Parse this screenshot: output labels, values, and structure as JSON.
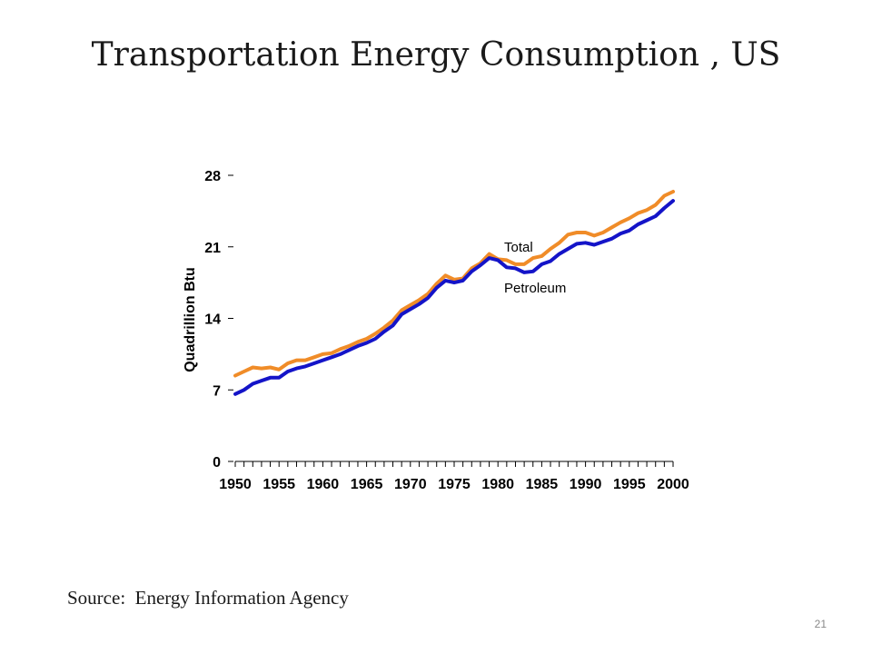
{
  "slide": {
    "title": "Transportation Energy Consumption , US",
    "source": "Source:  Energy Information Agency",
    "page_number": "21"
  },
  "chart_data": {
    "type": "line",
    "title": "",
    "xlabel": "",
    "ylabel": "Quadrillion Btu",
    "xlim": [
      1950,
      2000
    ],
    "ylim": [
      0,
      28
    ],
    "x_ticks": [
      1950,
      1955,
      1960,
      1965,
      1970,
      1975,
      1980,
      1985,
      1990,
      1995,
      2000
    ],
    "y_ticks": [
      0,
      7,
      14,
      21,
      28
    ],
    "grid": false,
    "legend": "inline labels",
    "x": [
      1950,
      1951,
      1952,
      1953,
      1954,
      1955,
      1956,
      1957,
      1958,
      1959,
      1960,
      1961,
      1962,
      1963,
      1964,
      1965,
      1966,
      1967,
      1968,
      1969,
      1970,
      1971,
      1972,
      1973,
      1974,
      1975,
      1976,
      1977,
      1978,
      1979,
      1980,
      1981,
      1982,
      1983,
      1984,
      1985,
      1986,
      1987,
      1988,
      1989,
      1990,
      1991,
      1992,
      1993,
      1994,
      1995,
      1996,
      1997,
      1998,
      1999,
      2000
    ],
    "series": [
      {
        "name": "Total",
        "color": "#f08c28",
        "values": [
          8.4,
          8.8,
          9.2,
          9.1,
          9.2,
          9.0,
          9.6,
          9.9,
          9.9,
          10.2,
          10.5,
          10.6,
          11.0,
          11.3,
          11.7,
          12.0,
          12.5,
          13.1,
          13.8,
          14.8,
          15.3,
          15.8,
          16.4,
          17.4,
          18.2,
          17.8,
          17.9,
          18.9,
          19.4,
          20.3,
          19.8,
          19.7,
          19.3,
          19.3,
          19.9,
          20.1,
          20.8,
          21.4,
          22.2,
          22.4,
          22.4,
          22.1,
          22.4,
          22.9,
          23.4,
          23.8,
          24.3,
          24.6,
          25.1,
          26.0,
          26.4
        ]
      },
      {
        "name": "Petroleum",
        "color": "#1414c8",
        "values": [
          6.6,
          7.0,
          7.6,
          7.9,
          8.2,
          8.2,
          8.8,
          9.1,
          9.3,
          9.6,
          9.9,
          10.2,
          10.5,
          10.9,
          11.3,
          11.6,
          12.0,
          12.7,
          13.3,
          14.4,
          14.9,
          15.4,
          16.0,
          17.0,
          17.7,
          17.5,
          17.7,
          18.6,
          19.2,
          19.9,
          19.7,
          19.0,
          18.9,
          18.5,
          18.6,
          19.3,
          19.6,
          20.3,
          20.8,
          21.3,
          21.4,
          21.2,
          21.5,
          21.8,
          22.3,
          22.6,
          23.2,
          23.6,
          24.0,
          24.8,
          25.5
        ]
      }
    ]
  }
}
